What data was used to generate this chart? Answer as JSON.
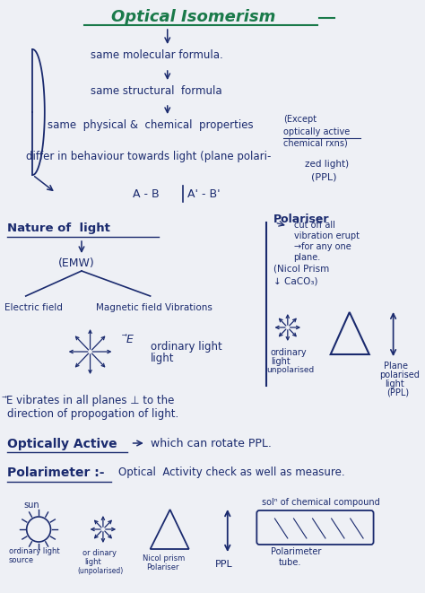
{
  "bg_color": "#eef0f5",
  "tc": "#1a2a6e",
  "tg": "#1a7a4a",
  "title": "Optical Isomerism",
  "line1": "same molecular formula.",
  "line2": "same structural  formula",
  "line3": "same  physical &  chemical  properties",
  "line3b": "(Except",
  "line3c": "optically active",
  "line3d": "chemical rxns)",
  "line4": "differ in behaviour towards light (plane polari-",
  "line4b": "zed light)",
  "line4c": "(PPL)",
  "line5": "A - B",
  "line5b": "A' - B'",
  "nature_title": "Nature of  light",
  "emw": "(EMW)",
  "electric": "Electric field",
  "magnetic": "Magnetic field Vibrations",
  "ordinary": "ordinary light",
  "polariser_title": "Polariser",
  "pol_arrow": "cut off all",
  "pol_arrow2": "vibration erupt",
  "pol_arrow3": "→for any one",
  "pol_arrow4": "plane.",
  "nicol": "(Nicol Prism",
  "caco3": "↓ CaCO₃)",
  "ord_light_r": "ordinary",
  "light_r": "light",
  "unpol_r": "unpolarised",
  "plane_pol": "Plane",
  "polarised": "polarised",
  "light_ppl": "light",
  "ppl": "(PPL)",
  "vibrates1": "⃗E vibrates in all planes ⊥ to the",
  "vibrates2": "direction of propogation of light.",
  "opt_active": "Optically Active",
  "opt_desc": "which can rotate PPL.",
  "polarimeter": "Polarimeter :-",
  "pol_desc": "Optical  Activity check as well as measure.",
  "sun_lbl": "sun",
  "ord_src1": "ordinary light",
  "ord_src2": "source",
  "ord2_1": "or dinary",
  "ord2_2": "light",
  "ord2_3": "(unpolarised)",
  "nicol_pol1": "Nicol prism",
  "nicol_pol2": "Polariser",
  "ppl_bot": "PPL",
  "sol_lbl": "solⁿ of chemical compound",
  "pol_tube1": "Polarimeter",
  "pol_tube2": "tube."
}
